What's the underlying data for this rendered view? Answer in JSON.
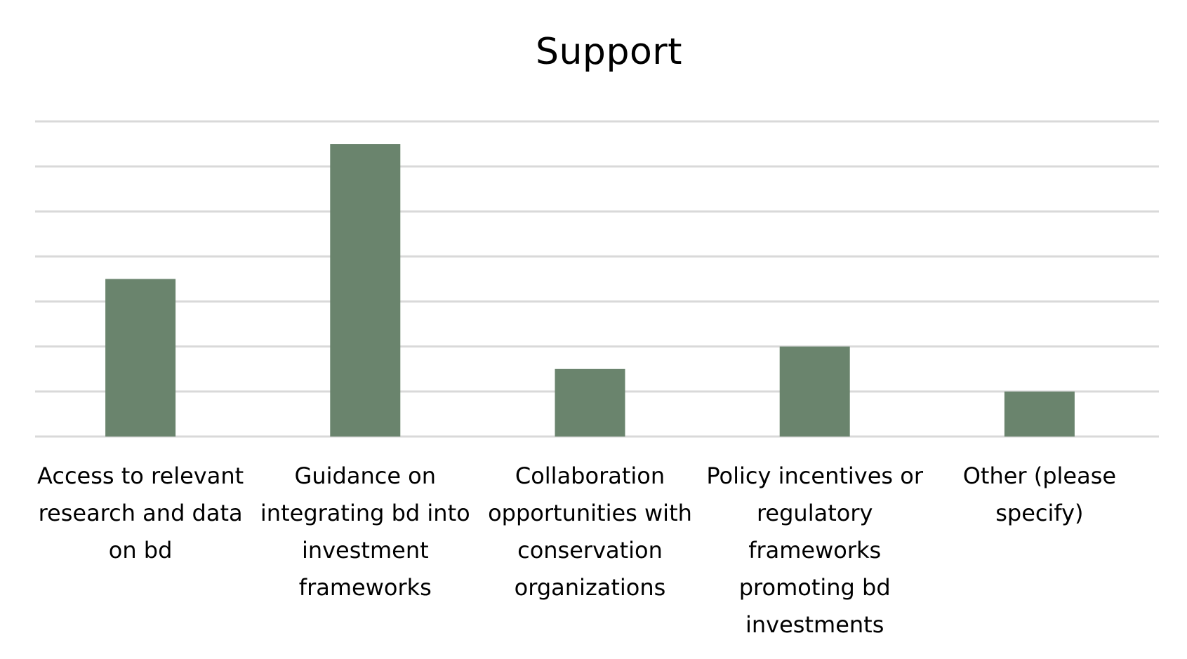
{
  "chart_data": {
    "type": "bar",
    "title": "Support",
    "categories": [
      "Access to relevant\nresearch and data\non bd",
      "Guidance on\nintegrating bd into\ninvestment\nframeworks",
      "Collaboration\nopportunities with\nconservation\norganizations",
      "Policy incentives or\nregulatory\nframeworks\npromoting bd\ninvestments",
      "Other (please\nspecify)"
    ],
    "values": [
      3.5,
      6.5,
      1.5,
      2,
      1
    ],
    "ylim": [
      0,
      7
    ],
    "grid": true,
    "bar_color": "#6a846d",
    "grid_color": "#d9d9d9"
  }
}
